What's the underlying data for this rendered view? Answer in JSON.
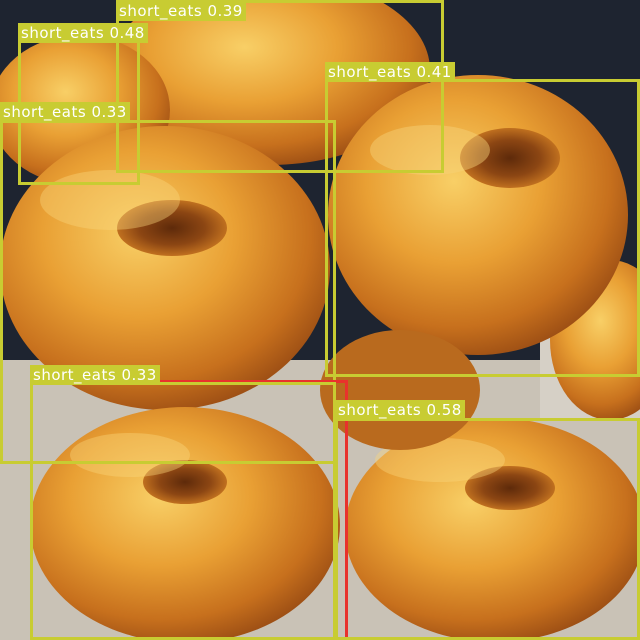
{
  "image": {
    "subject": "donuts",
    "colors": {
      "background": "#1e2430",
      "glaze": "#e49a2c",
      "glaze_dark": "#b0601a",
      "glaze_light": "#f6c65a",
      "hole": "#8a4212",
      "box_yellow": "#c8cc32",
      "box_red": "#e8322c",
      "label_text": "#ffffff"
    }
  },
  "detections": [
    {
      "class": "short_eats",
      "score": "0.39",
      "color": "yellow"
    },
    {
      "class": "short_eats",
      "score": "0.48",
      "color": "yellow"
    },
    {
      "class": "short_eats",
      "score": "0.41",
      "color": "yellow"
    },
    {
      "class": "short_eats",
      "score": "0.33",
      "color": "yellow"
    },
    {
      "class": "short_eats",
      "score": "0.33",
      "color": "red"
    },
    {
      "class": "short_eats",
      "score": "0.58",
      "color": "yellow"
    }
  ]
}
